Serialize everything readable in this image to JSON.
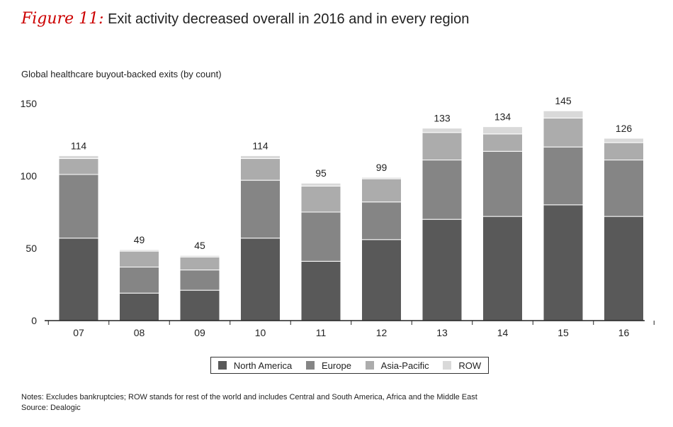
{
  "figure": {
    "label": "Figure 11:",
    "title": "Exit activity decreased overall in 2016 and in every region"
  },
  "chart_data": {
    "type": "bar",
    "stacked": true,
    "title": "Global healthcare buyout-backed exits (by count)",
    "xlabel": "",
    "ylabel": "",
    "ylim": [
      0,
      150
    ],
    "yticks": [
      0,
      50,
      100,
      150
    ],
    "categories": [
      "07",
      "08",
      "09",
      "10",
      "11",
      "12",
      "13",
      "14",
      "15",
      "16"
    ],
    "totals": [
      114,
      49,
      45,
      114,
      95,
      99,
      133,
      134,
      145,
      126
    ],
    "series": [
      {
        "name": "North America",
        "color": "#595959",
        "values": [
          57,
          19,
          21,
          57,
          41,
          56,
          70,
          72,
          80,
          72
        ]
      },
      {
        "name": "Europe",
        "color": "#858585",
        "values": [
          44,
          18,
          14,
          40,
          34,
          26,
          41,
          45,
          40,
          39
        ]
      },
      {
        "name": "Asia-Pacific",
        "color": "#acacac",
        "values": [
          11,
          11,
          9,
          15,
          18,
          16,
          19,
          12,
          20,
          12
        ]
      },
      {
        "name": "ROW",
        "color": "#d9d9d9",
        "values": [
          2,
          1,
          1,
          2,
          2,
          1,
          3,
          5,
          5,
          3
        ]
      }
    ],
    "legend_position": "bottom"
  },
  "notes": {
    "line1": "Notes: Excludes bankruptcies; ROW stands for rest of the world and includes Central and South America, Africa and the Middle East",
    "line2": "Source: Dealogic"
  }
}
